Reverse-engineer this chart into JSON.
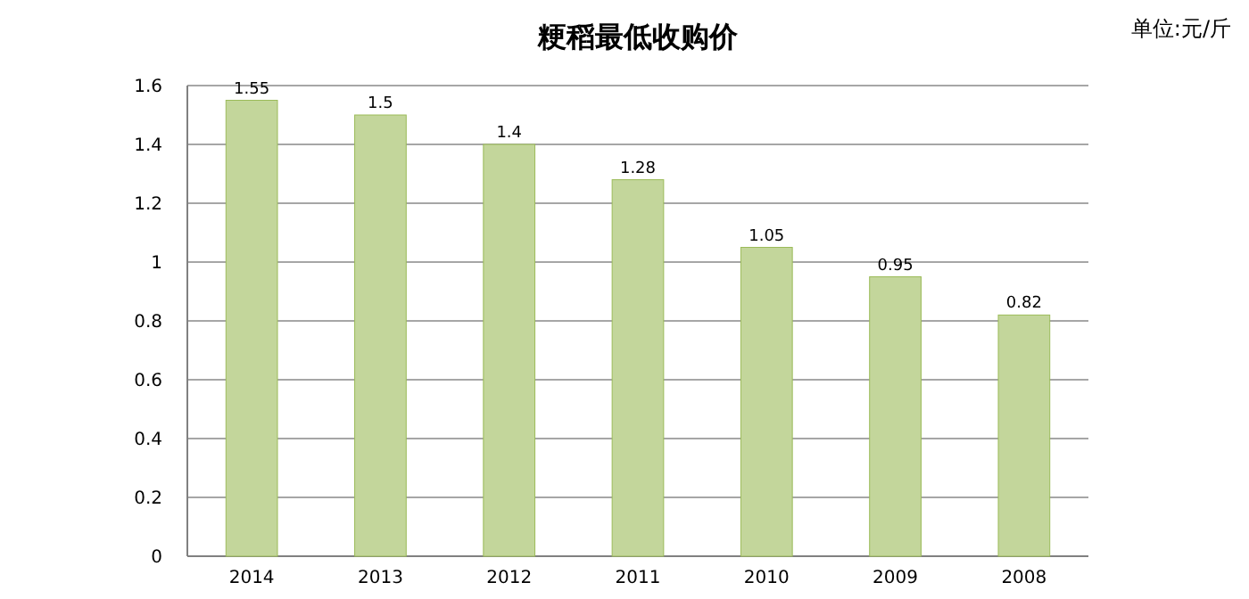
{
  "chart_data": {
    "type": "bar",
    "title": "粳稻最低收购价",
    "annotations": [
      "单位:元/斤"
    ],
    "categories": [
      "2014",
      "2013",
      "2012",
      "2011",
      "2010",
      "2009",
      "2008"
    ],
    "values": [
      1.55,
      1.5,
      1.4,
      1.28,
      1.05,
      0.95,
      0.82
    ],
    "color": "#c3d69b",
    "ylim": [
      0,
      1.6
    ],
    "yticks": [
      0,
      0.2,
      0.4,
      0.6,
      0.8,
      1,
      1.2,
      1.4,
      1.6
    ],
    "grid": "y",
    "data_labels": true
  }
}
